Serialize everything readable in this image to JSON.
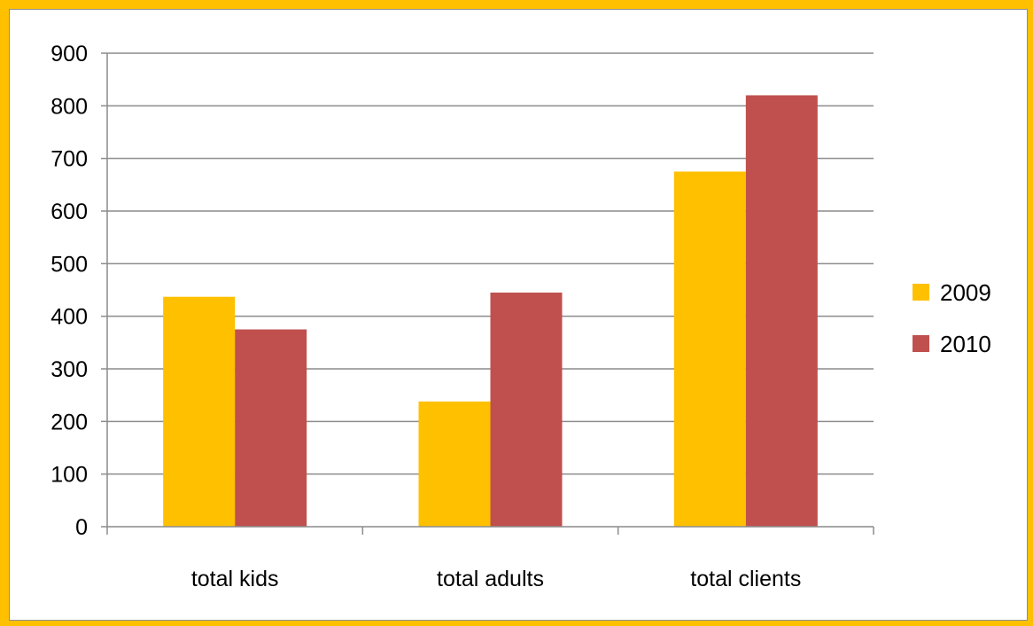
{
  "chart_data": {
    "type": "bar",
    "title": "",
    "xlabel": "",
    "ylabel": "",
    "categories": [
      "total kids",
      "total adults",
      "total clients"
    ],
    "series": [
      {
        "name": "2009",
        "values": [
          437,
          238,
          675
        ],
        "color": "#ffc000"
      },
      {
        "name": "2010",
        "values": [
          375,
          445,
          820
        ],
        "color": "#c0504d"
      }
    ],
    "ylim": [
      0,
      900
    ],
    "yticks": [
      0,
      100,
      200,
      300,
      400,
      500,
      600,
      700,
      800,
      900
    ],
    "grid": true,
    "legend_position": "right",
    "frame_color": "#ffc000"
  }
}
